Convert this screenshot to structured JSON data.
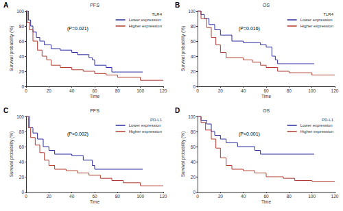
{
  "chart_data": [
    {
      "type": "step",
      "panel": "A",
      "title": "PFS",
      "legend_title": "TLR4",
      "annotation": "(P=0.021)",
      "xlabel": "Time",
      "ylabel": "Survival probability (%)",
      "xlim": [
        0,
        120
      ],
      "ylim": [
        0,
        100
      ],
      "xticks": [
        0,
        20,
        40,
        60,
        80,
        100,
        120
      ],
      "yticks": [
        0,
        20,
        40,
        60,
        80,
        100
      ],
      "grid": false,
      "legend": "upper right",
      "series": [
        {
          "name": "Lower expression",
          "color": "#2b2b9e",
          "x": [
            0,
            2,
            4,
            6,
            9,
            12,
            16,
            22,
            30,
            40,
            45,
            55,
            58,
            60,
            70,
            75,
            102
          ],
          "values": [
            100,
            88,
            80,
            72,
            65,
            60,
            55,
            50,
            48,
            45,
            42,
            38,
            35,
            28,
            25,
            19,
            19
          ]
        },
        {
          "name": "Higher expression",
          "color": "#b03a2e",
          "x": [
            0,
            1,
            3,
            6,
            10,
            14,
            18,
            22,
            30,
            40,
            50,
            60,
            70,
            80,
            100,
            120
          ],
          "values": [
            100,
            85,
            75,
            60,
            48,
            40,
            35,
            28,
            25,
            22,
            20,
            17,
            15,
            12,
            8,
            8
          ]
        }
      ]
    },
    {
      "type": "step",
      "panel": "B",
      "title": "OS",
      "legend_title": "TLR4",
      "annotation": "(P=0.016)",
      "xlabel": "Time",
      "ylabel": "Survival probability (%)",
      "xlim": [
        0,
        120
      ],
      "ylim": [
        0,
        100
      ],
      "xticks": [
        0,
        20,
        40,
        60,
        80,
        100,
        120
      ],
      "yticks": [
        0,
        20,
        40,
        60,
        80,
        100
      ],
      "grid": false,
      "legend": "upper right",
      "series": [
        {
          "name": "Lower expression",
          "color": "#2b2b9e",
          "x": [
            0,
            3,
            6,
            10,
            15,
            20,
            30,
            40,
            55,
            60,
            65,
            68,
            70,
            102
          ],
          "values": [
            100,
            95,
            90,
            82,
            75,
            68,
            60,
            58,
            55,
            52,
            40,
            35,
            30,
            30
          ]
        },
        {
          "name": "Higher expression",
          "color": "#b03a2e",
          "x": [
            0,
            3,
            8,
            12,
            16,
            20,
            25,
            40,
            48,
            55,
            60,
            70,
            80,
            100,
            120
          ],
          "values": [
            100,
            90,
            78,
            65,
            55,
            45,
            38,
            35,
            32,
            28,
            25,
            20,
            18,
            15,
            15
          ]
        }
      ]
    },
    {
      "type": "step",
      "panel": "C",
      "title": "PFS",
      "legend_title": "PD-L1",
      "annotation": "(P=0.002)",
      "xlabel": "Time",
      "ylabel": "Survival probability (%)",
      "xlim": [
        0,
        120
      ],
      "ylim": [
        0,
        100
      ],
      "xticks": [
        0,
        20,
        40,
        60,
        80,
        100,
        120
      ],
      "yticks": [
        0,
        20,
        40,
        60,
        80,
        100
      ],
      "grid": false,
      "legend": "upper right",
      "series": [
        {
          "name": "Lower expression",
          "color": "#2b2b9e",
          "x": [
            0,
            3,
            6,
            10,
            15,
            20,
            25,
            40,
            50,
            58,
            60,
            102
          ],
          "values": [
            100,
            85,
            78,
            70,
            60,
            55,
            50,
            48,
            42,
            35,
            30,
            30
          ]
        },
        {
          "name": "Higher expression",
          "color": "#b03a2e",
          "x": [
            0,
            2,
            4,
            8,
            12,
            16,
            20,
            25,
            35,
            45,
            55,
            65,
            75,
            85,
            100,
            120
          ],
          "values": [
            100,
            85,
            72,
            62,
            52,
            42,
            35,
            30,
            28,
            25,
            22,
            18,
            15,
            12,
            8,
            8
          ]
        }
      ]
    },
    {
      "type": "step",
      "panel": "D",
      "title": "OS",
      "legend_title": "PD-L1",
      "annotation": "(P<0.001)",
      "xlabel": "Time",
      "ylabel": "Survival probability (%)",
      "xlim": [
        0,
        120
      ],
      "ylim": [
        0,
        100
      ],
      "xticks": [
        0,
        20,
        40,
        60,
        80,
        100,
        120
      ],
      "yticks": [
        0,
        20,
        40,
        60,
        80,
        100
      ],
      "grid": false,
      "legend": "upper right",
      "series": [
        {
          "name": "Lower expression",
          "color": "#2b2b9e",
          "x": [
            0,
            3,
            8,
            12,
            15,
            20,
            25,
            35,
            50,
            55,
            102
          ],
          "values": [
            100,
            95,
            90,
            80,
            75,
            70,
            65,
            60,
            55,
            50,
            50
          ]
        },
        {
          "name": "Higher expression",
          "color": "#b03a2e",
          "x": [
            0,
            3,
            7,
            12,
            16,
            20,
            25,
            30,
            40,
            50,
            60,
            75,
            85,
            100,
            120
          ],
          "values": [
            100,
            92,
            82,
            70,
            58,
            45,
            35,
            30,
            28,
            25,
            20,
            18,
            15,
            14,
            14
          ]
        }
      ]
    }
  ]
}
